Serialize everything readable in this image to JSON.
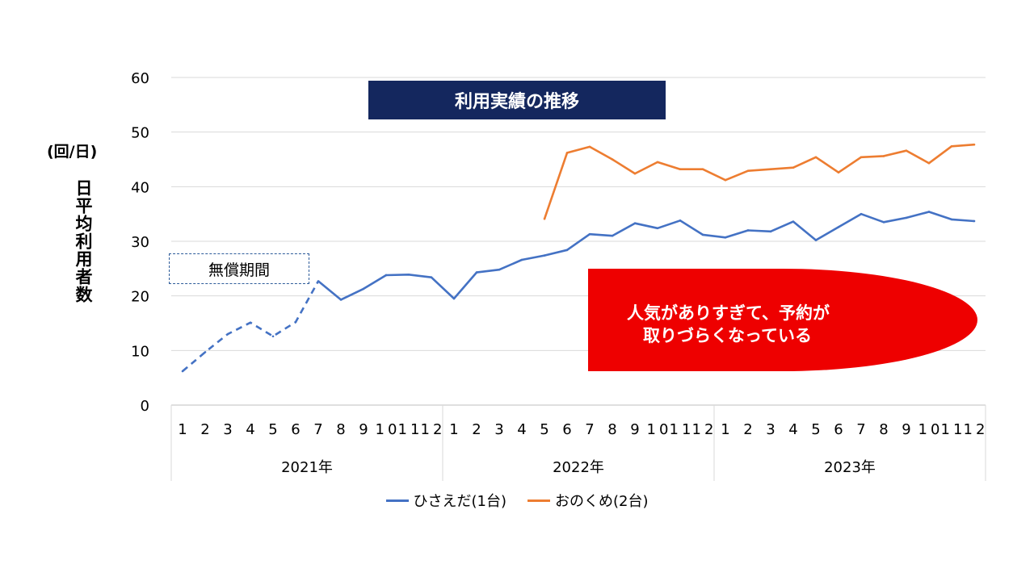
{
  "chart_data": {
    "type": "line",
    "title": "利用実績の推移",
    "unit_label": "(回/日)",
    "ylabel": "日平均利用者数",
    "ylim": [
      0,
      60
    ],
    "yticks": [
      0,
      10,
      20,
      30,
      40,
      50,
      60
    ],
    "grid": true,
    "legend_position": "bottom",
    "months": [
      "1",
      "2",
      "3",
      "4",
      "5",
      "6",
      "7",
      "8",
      "9",
      "10",
      "11",
      "12",
      "1",
      "2",
      "3",
      "4",
      "5",
      "6",
      "7",
      "8",
      "9",
      "10",
      "11",
      "12",
      "1",
      "2",
      "3",
      "4",
      "5",
      "6",
      "7",
      "8",
      "9",
      "10",
      "11",
      "12"
    ],
    "years": [
      "2021年",
      "2022年",
      "2023年"
    ],
    "series": [
      {
        "name": "ひさえだ(1台)",
        "color": "#4472c4",
        "values": [
          6.2,
          9.7,
          13.0,
          15.1,
          12.6,
          15.2,
          22.7,
          19.3,
          21.3,
          23.8,
          23.9,
          23.4,
          19.5,
          24.3,
          24.8,
          26.6,
          27.4,
          28.4,
          31.3,
          31.0,
          33.3,
          32.4,
          33.8,
          31.2,
          30.7,
          32.0,
          31.8,
          33.6,
          30.2,
          32.6,
          35.0,
          33.5,
          34.3,
          35.4,
          34.0,
          33.7
        ],
        "dashed_until_index": 6
      },
      {
        "name": "おのくめ(2台)",
        "color": "#ed7d31",
        "start_index": 16,
        "values": [
          34.1,
          46.2,
          47.3,
          45.0,
          42.4,
          44.5,
          43.2,
          43.2,
          41.2,
          42.9,
          43.2,
          43.5,
          45.4,
          42.6,
          45.4,
          45.6,
          46.6,
          44.3,
          47.4,
          47.7
        ]
      }
    ],
    "annotations": {
      "free_period": "無償期間",
      "callout_line1": "人気がありすぎて、予約が",
      "callout_line2": "取りづらくなっている"
    }
  }
}
